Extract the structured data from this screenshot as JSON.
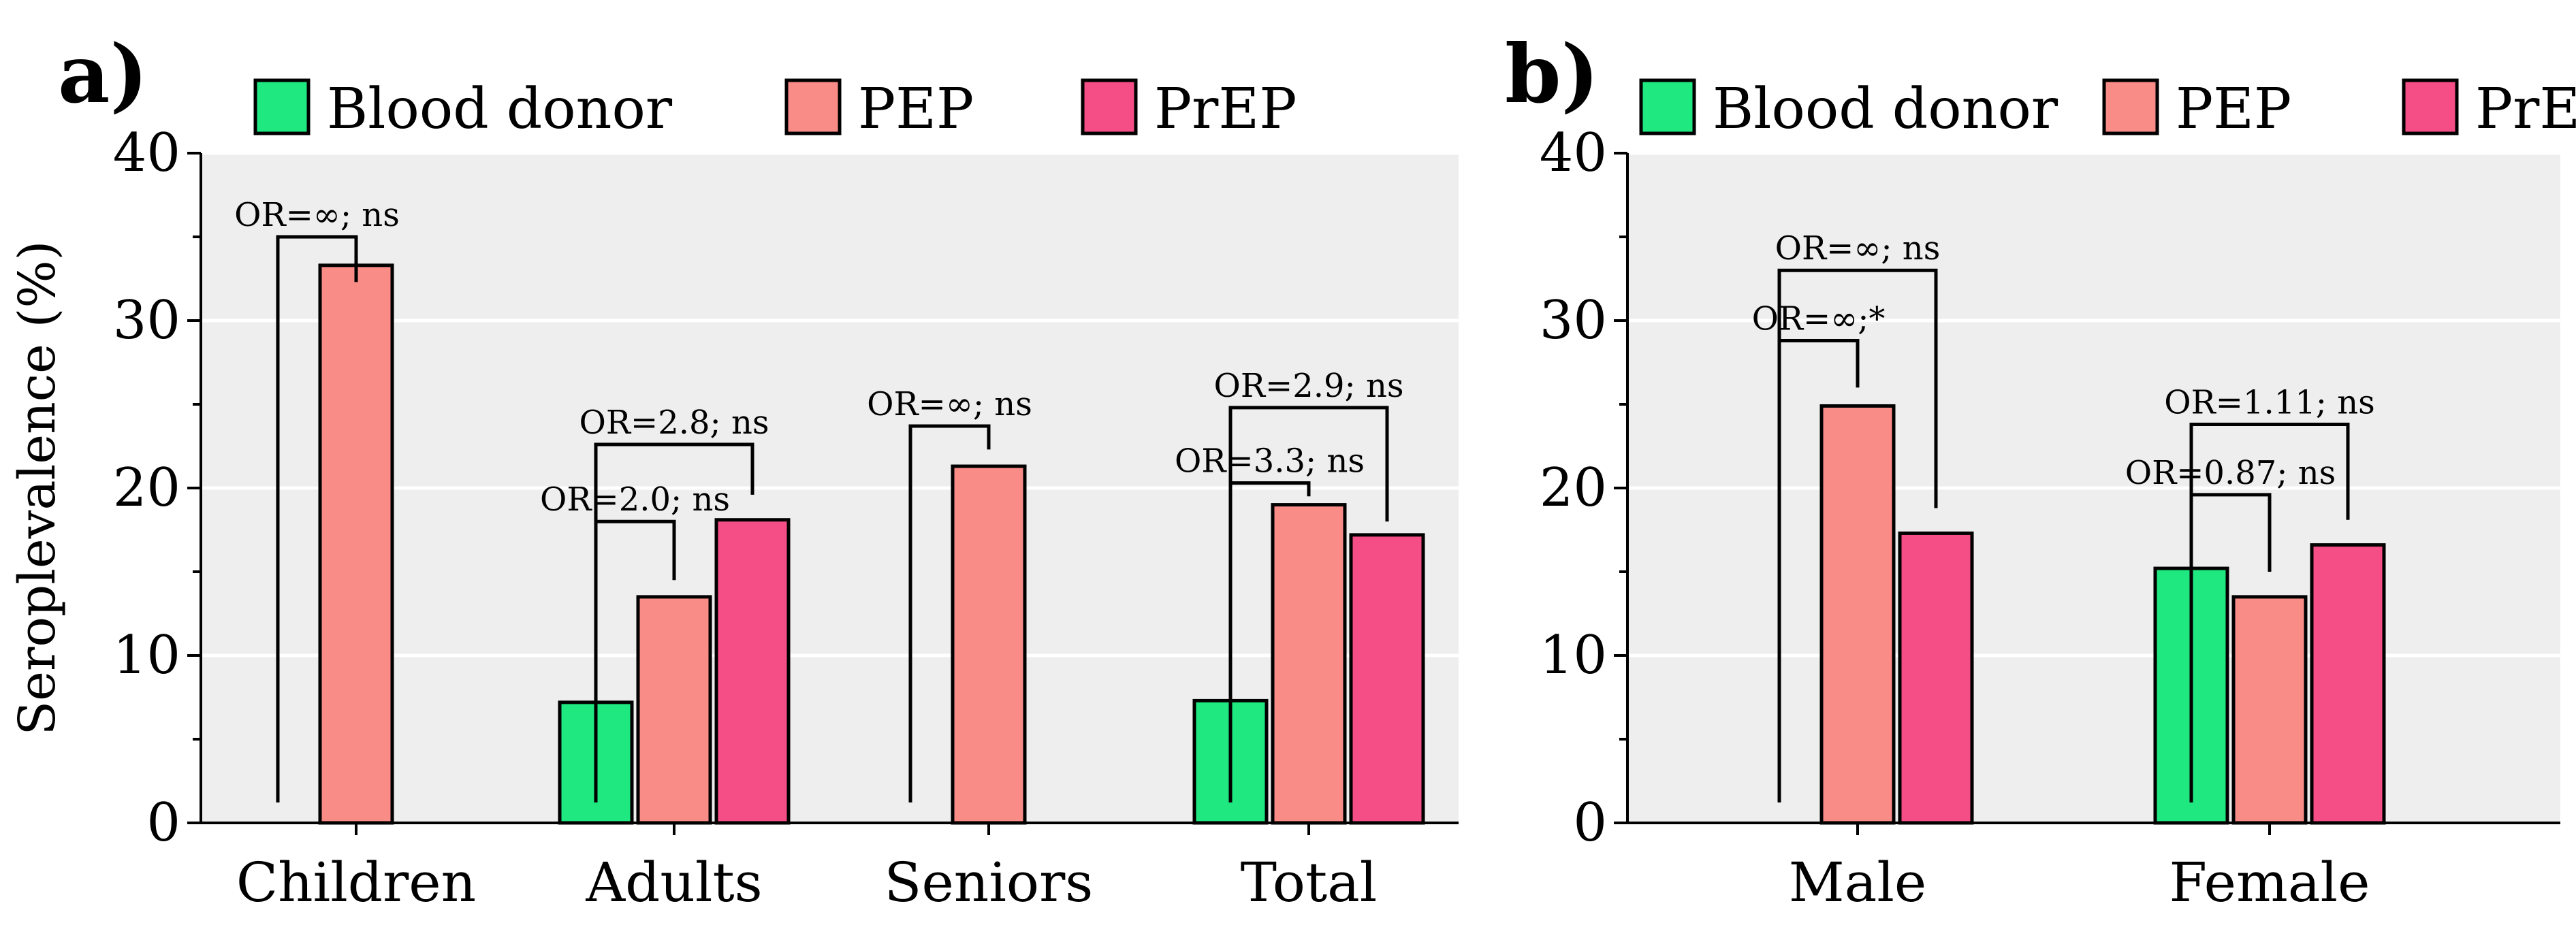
{
  "colors": {
    "blood_donor": "#1ee87f",
    "pep": "#f98c86",
    "prep": "#f54d86",
    "panel_bg": "#eeeeee"
  },
  "legend": [
    {
      "key": "blood_donor",
      "label": "Blood donor"
    },
    {
      "key": "pep",
      "label": "PEP"
    },
    {
      "key": "prep",
      "label": "PrEP"
    }
  ],
  "chart_data": [
    {
      "panel_label": "a)",
      "type": "bar",
      "ylabel": "Seroplevalence (%)",
      "ylim": [
        0,
        40
      ],
      "yticks": [
        0,
        10,
        20,
        30,
        40
      ],
      "categories": [
        "Children",
        "Adults",
        "Seniors",
        "Total"
      ],
      "series": [
        {
          "key": "blood_donor",
          "name": "Blood donor",
          "values": [
            null,
            7.2,
            null,
            7.3
          ]
        },
        {
          "key": "pep",
          "name": "PEP",
          "values": [
            33.3,
            13.5,
            21.3,
            19.0
          ]
        },
        {
          "key": "prep",
          "name": "PrEP",
          "values": [
            null,
            18.1,
            null,
            17.2
          ]
        }
      ],
      "annotations": [
        {
          "category": 0,
          "from": "blood_donor",
          "to": "pep",
          "level": 35.0,
          "to_drop": 32.3,
          "text": "OR=∞; ns"
        },
        {
          "category": 1,
          "from": "blood_donor",
          "to": "pep",
          "level": 18.0,
          "to_drop": 14.5,
          "text": "OR=2.0; ns"
        },
        {
          "category": 1,
          "from": "blood_donor",
          "to": "prep",
          "level": 22.6,
          "to_drop": 19.6,
          "text": "OR=2.8; ns"
        },
        {
          "category": 2,
          "from": "blood_donor",
          "to": "pep",
          "level": 23.7,
          "to_drop": 22.3,
          "text": "OR=∞; ns"
        },
        {
          "category": 3,
          "from": "blood_donor",
          "to": "pep",
          "level": 20.3,
          "to_drop": 19.5,
          "text": "OR=3.3; ns"
        },
        {
          "category": 3,
          "from": "blood_donor",
          "to": "prep",
          "level": 24.8,
          "to_drop": 18.0,
          "text": "OR=2.9; ns"
        }
      ]
    },
    {
      "panel_label": "b)",
      "type": "bar",
      "ylabel": "",
      "ylim": [
        0,
        40
      ],
      "yticks": [
        0,
        10,
        20,
        30,
        40
      ],
      "categories": [
        "Male",
        "Female"
      ],
      "series": [
        {
          "key": "blood_donor",
          "name": "Blood donor",
          "values": [
            null,
            15.2
          ]
        },
        {
          "key": "pep",
          "name": "PEP",
          "values": [
            24.9,
            13.5
          ]
        },
        {
          "key": "prep",
          "name": "PrEP",
          "values": [
            17.3,
            16.6
          ]
        }
      ],
      "annotations": [
        {
          "category": 0,
          "from": "blood_donor",
          "to": "pep",
          "level": 28.8,
          "to_drop": 26.0,
          "text": "OR=∞;*"
        },
        {
          "category": 0,
          "from": "blood_donor",
          "to": "prep",
          "level": 33.0,
          "to_drop": 18.8,
          "text": "OR=∞; ns"
        },
        {
          "category": 1,
          "from": "blood_donor",
          "to": "pep",
          "level": 19.6,
          "to_drop": 15.0,
          "text": "OR=0.87; ns"
        },
        {
          "category": 1,
          "from": "blood_donor",
          "to": "prep",
          "level": 23.8,
          "to_drop": 18.1,
          "text": "OR=1.11; ns"
        }
      ]
    }
  ]
}
